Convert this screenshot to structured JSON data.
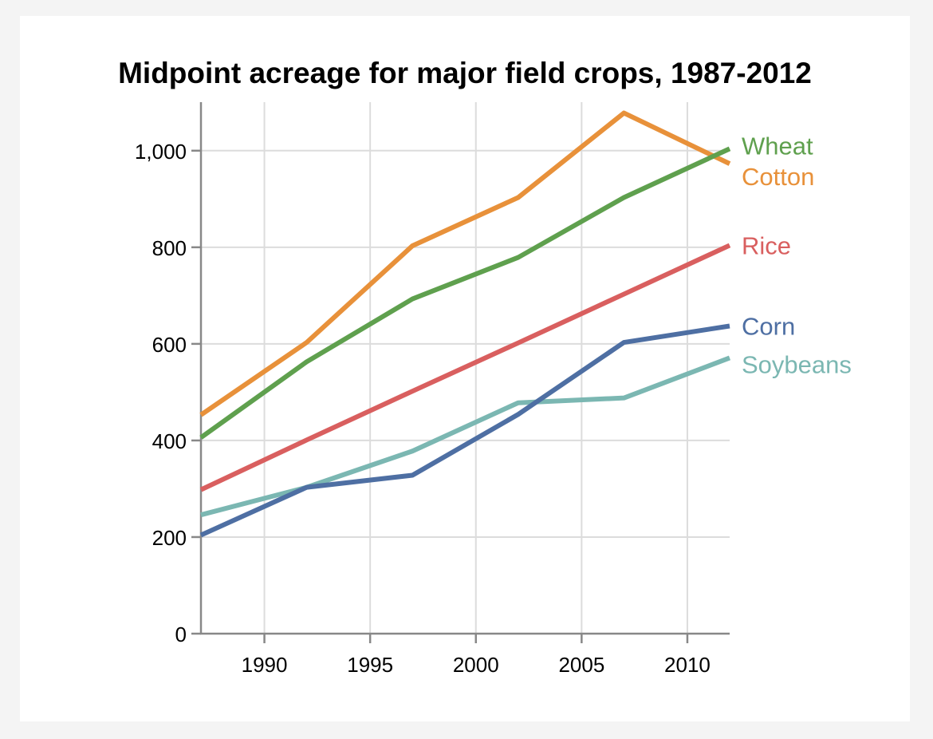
{
  "chart_data": {
    "type": "line",
    "title": "Midpoint acreage for major field crops, 1987-2012",
    "xlabel": "",
    "ylabel": "",
    "x": [
      1987,
      1992,
      1997,
      2002,
      2007,
      2012
    ],
    "xlim": [
      1987,
      2012
    ],
    "ylim": [
      0,
      1100
    ],
    "x_ticks": [
      1990,
      1995,
      2000,
      2005,
      2010
    ],
    "y_ticks": [
      0,
      200,
      400,
      600,
      800,
      1000
    ],
    "x_tick_labels": [
      "1990",
      "1995",
      "2000",
      "2005",
      "2010"
    ],
    "y_tick_labels": [
      "0",
      "200",
      "400",
      "600",
      "800",
      "1,000"
    ],
    "grid": true,
    "legend": "end-of-line labels",
    "series": [
      {
        "name": "Cotton",
        "color": "#e8913a",
        "values": [
          453,
          603,
          803,
          903,
          1078,
          973
        ]
      },
      {
        "name": "Wheat",
        "color": "#5fa04e",
        "values": [
          406,
          563,
          693,
          779,
          903,
          1004
        ]
      },
      {
        "name": "Rice",
        "color": "#d95f5f",
        "values": [
          298,
          401,
          502,
          602,
          703,
          804
        ]
      },
      {
        "name": "Soybeans",
        "color": "#7bb7b2",
        "values": [
          246,
          303,
          378,
          478,
          488,
          571
        ]
      },
      {
        "name": "Corn",
        "color": "#4e6fa3",
        "values": [
          204,
          303,
          328,
          454,
          603,
          637
        ]
      }
    ]
  }
}
